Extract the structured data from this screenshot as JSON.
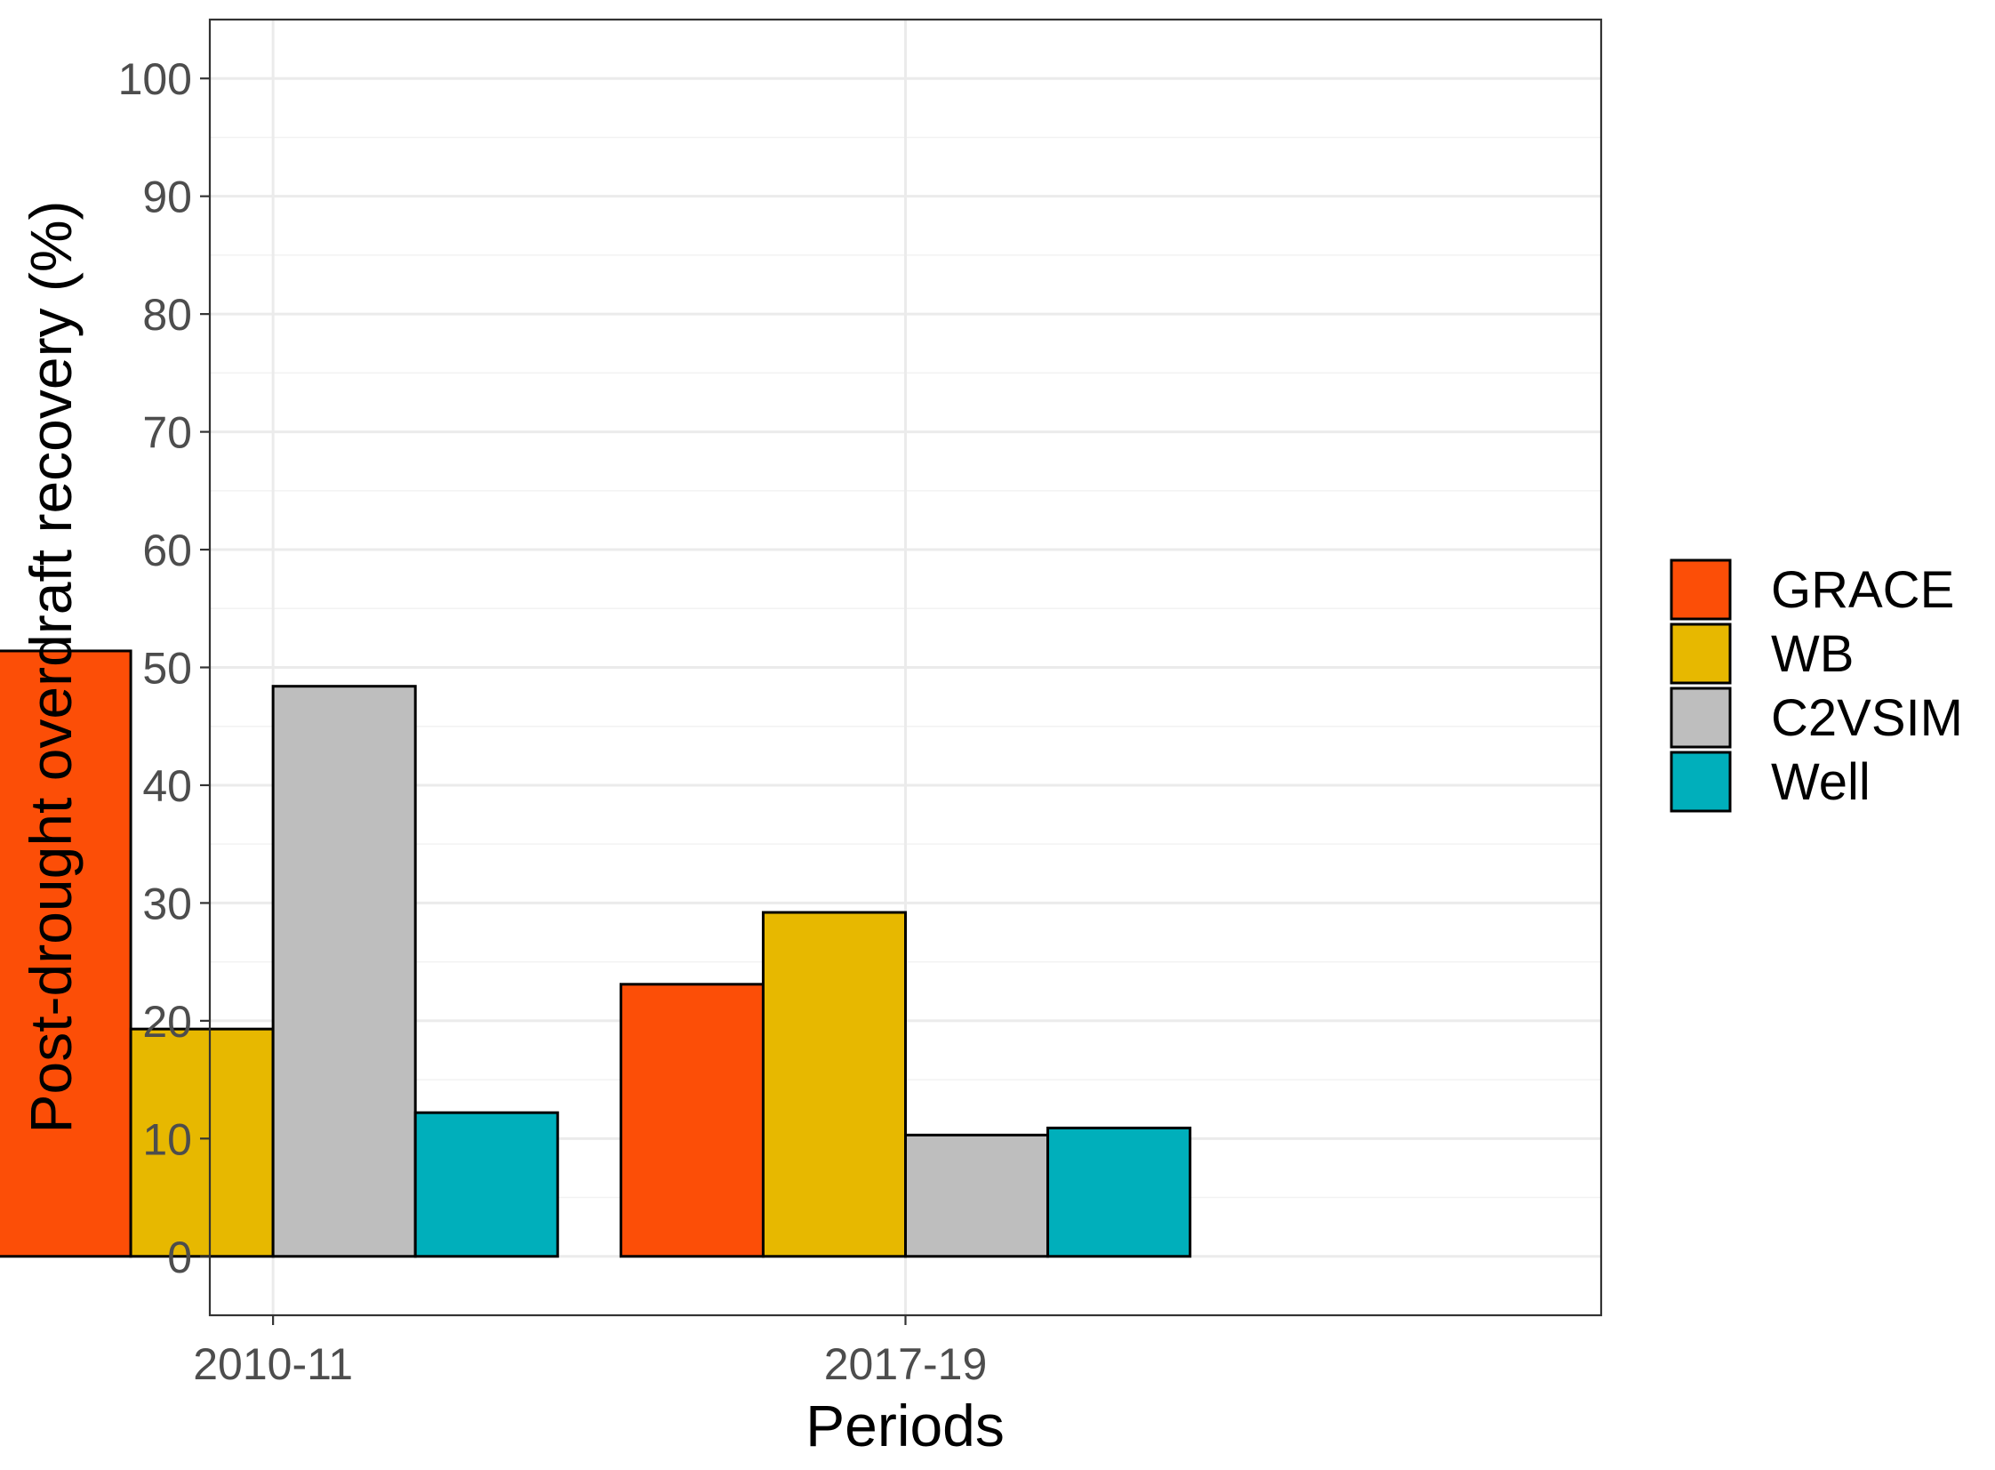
{
  "chart_data": {
    "type": "bar",
    "title": "",
    "xlabel": "Periods",
    "ylabel": "Post-drought overdraft recovery (%)",
    "categories": [
      "2010-11",
      "2017-19"
    ],
    "series": [
      {
        "name": "GRACE",
        "color": "#FC4E07",
        "values": [
          51.4,
          23.1
        ]
      },
      {
        "name": "WB",
        "color": "#E7B800",
        "values": [
          19.3,
          29.2
        ]
      },
      {
        "name": "C2VSIM",
        "color": "#BEBEBE",
        "values": [
          48.4,
          10.3
        ]
      },
      {
        "name": "Well",
        "color": "#00AFBB",
        "values": [
          12.2,
          10.9
        ]
      }
    ],
    "ylim": [
      -5,
      105
    ],
    "yticks": [
      0,
      10,
      20,
      30,
      40,
      50,
      60,
      70,
      80,
      90,
      100
    ],
    "grid": true,
    "legend_position": "right"
  }
}
